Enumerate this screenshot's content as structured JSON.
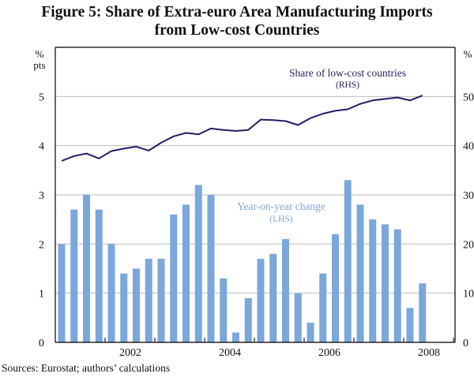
{
  "title_line1": "Figure 5: Share of Extra-euro Area Manufacturing Imports",
  "title_line2": "from Low-cost Countries",
  "source": "Sources:  Eurostat; authors’ calculations",
  "colors": {
    "bars": "#7BA7DA",
    "line": "#1F1F66",
    "bar_label": "#7BA7DA",
    "line_label": "#1F1F66",
    "grid": "#BBBBBB"
  },
  "chart_data": {
    "type": "bar+line",
    "title": "Figure 5: Share of Extra-euro Area Manufacturing Imports from Low-cost Countries",
    "x_frequency": "quarterly",
    "x_start": "2000 Q4",
    "x_ticks": [
      "2002",
      "2004",
      "2006",
      "2008"
    ],
    "y_left": {
      "label_line1": "%",
      "label_line2": "pts",
      "ylim": [
        0,
        6
      ],
      "ticks": [
        "0",
        "1",
        "2",
        "3",
        "4",
        "5"
      ]
    },
    "y_right": {
      "label": "%",
      "ylim": [
        0,
        60
      ],
      "ticks": [
        "0",
        "10",
        "20",
        "30",
        "40",
        "50"
      ]
    },
    "grid": true,
    "series": [
      {
        "name": "Year-on-year change",
        "axis_note": "(LHS)",
        "type": "bar",
        "axis": "left",
        "values": [
          2.0,
          2.7,
          3.0,
          2.7,
          2.0,
          1.4,
          1.5,
          1.7,
          1.7,
          2.6,
          2.8,
          3.2,
          3.0,
          1.3,
          0.2,
          0.9,
          1.7,
          1.8,
          2.1,
          1.0,
          0.4,
          1.4,
          2.2,
          3.3,
          2.8,
          2.5,
          2.4,
          2.3,
          0.7,
          1.2
        ]
      },
      {
        "name": "Share of low-cost countries",
        "axis_note": "(RHS)",
        "type": "line",
        "axis": "right",
        "values": [
          36.9,
          37.9,
          38.4,
          37.4,
          38.9,
          39.4,
          39.8,
          39.0,
          40.6,
          41.9,
          42.6,
          42.3,
          43.5,
          43.2,
          43.0,
          43.2,
          45.3,
          45.2,
          45.0,
          44.2,
          45.6,
          46.5,
          47.1,
          47.4,
          48.5,
          49.2,
          49.5,
          49.8,
          49.2,
          50.2
        ]
      }
    ]
  }
}
